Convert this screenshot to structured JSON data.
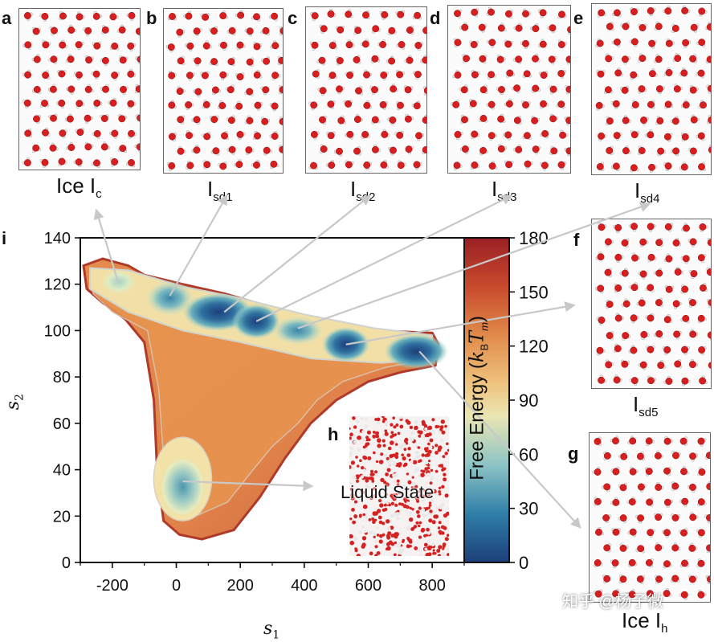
{
  "panels": {
    "a": {
      "letter": "a",
      "label": "Ice I",
      "sub": "c"
    },
    "b": {
      "letter": "b",
      "label": "I",
      "sub": "sd1"
    },
    "c": {
      "letter": "c",
      "label": "I",
      "sub": "sd2"
    },
    "d": {
      "letter": "d",
      "label": "I",
      "sub": "sd3"
    },
    "e": {
      "letter": "e",
      "label": "I",
      "sub": "sd4"
    },
    "f": {
      "letter": "f",
      "label": "I",
      "sub": "sd5"
    },
    "g": {
      "letter": "g",
      "label": "Ice I",
      "sub": "h"
    },
    "h": {
      "letter": "h",
      "label": "Liquid State"
    },
    "i": {
      "letter": "i"
    }
  },
  "watermark": "知乎 @杨子微",
  "chart_data": {
    "type": "heatmap",
    "title": "",
    "xlabel": "s",
    "xlabel_sub": "1",
    "ylabel": "s",
    "ylabel_sub": "2",
    "xlim": [
      -300,
      900
    ],
    "ylim": [
      0,
      140
    ],
    "x_ticks": [
      "-200",
      "0",
      "200",
      "400",
      "600",
      "800"
    ],
    "y_ticks": [
      "0",
      "20",
      "40",
      "60",
      "80",
      "100",
      "120",
      "140"
    ],
    "colorbar": {
      "label": "Free Energy",
      "unit_open": " (",
      "unit_k": "k",
      "unit_k_sub": "B",
      "unit_T": "T",
      "unit_T_sub": "m",
      "unit_close": ")",
      "range": [
        0,
        180
      ],
      "ticks": [
        "0",
        "30",
        "60",
        "90",
        "120",
        "150",
        "180"
      ]
    },
    "minima": [
      {
        "state": "Ice Ic",
        "s1": -180,
        "s2": 120
      },
      {
        "state": "Isd1",
        "s1": -20,
        "s2": 115
      },
      {
        "state": "Isd2",
        "s1": 150,
        "s2": 108
      },
      {
        "state": "Isd3",
        "s1": 250,
        "s2": 104
      },
      {
        "state": "Isd4",
        "s1": 380,
        "s2": 101
      },
      {
        "state": "Isd5",
        "s1": 530,
        "s2": 94
      },
      {
        "state": "Ice Ih",
        "s1": 760,
        "s2": 91
      },
      {
        "state": "Liquid State",
        "s1": 20,
        "s2": 35
      }
    ]
  }
}
